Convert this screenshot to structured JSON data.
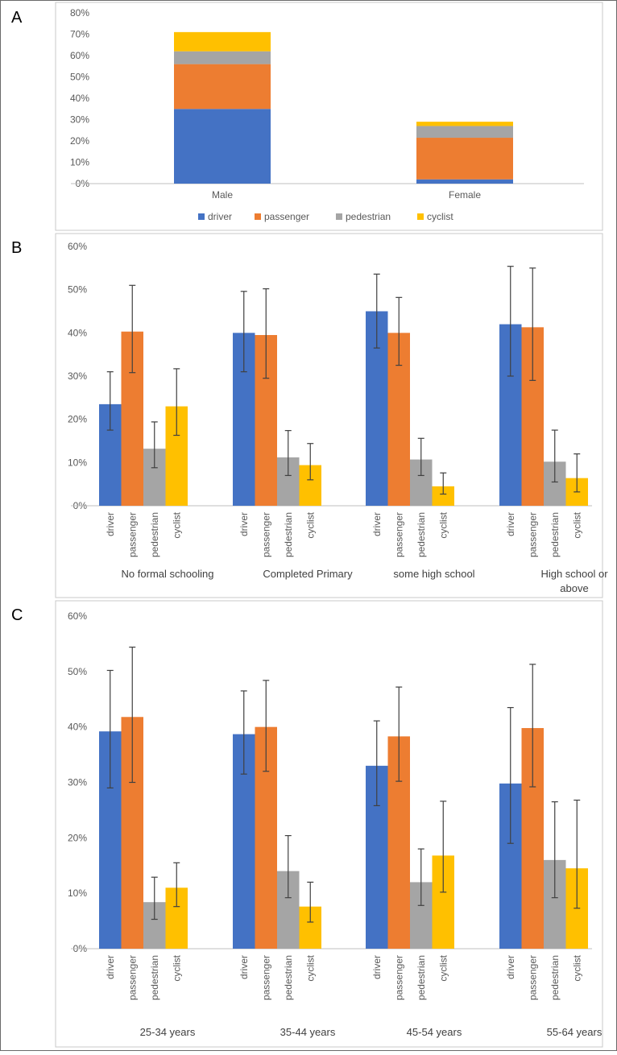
{
  "colors": {
    "driver": "#4472C4",
    "passenger": "#ED7D31",
    "pedestrian": "#A5A5A5",
    "cyclist": "#FFC000"
  },
  "chart_data": [
    {
      "panel": "A",
      "type": "bar",
      "stacked": true,
      "categories": [
        "Male",
        "Female"
      ],
      "series": [
        {
          "name": "driver",
          "values": [
            35,
            2
          ]
        },
        {
          "name": "passenger",
          "values": [
            21,
            19.5
          ]
        },
        {
          "name": "pedestrian",
          "values": [
            6,
            5.5
          ]
        },
        {
          "name": "cyclist",
          "values": [
            9,
            2
          ]
        }
      ],
      "yticks": [
        "0%",
        "10%",
        "20%",
        "30%",
        "40%",
        "50%",
        "60%",
        "70%",
        "80%"
      ],
      "ylim": [
        0,
        80
      ],
      "legend": [
        "driver",
        "passenger",
        "pedestrian",
        "cyclist"
      ],
      "legend_position": "bottom"
    },
    {
      "panel": "B",
      "type": "bar",
      "stacked": false,
      "groups": [
        "No formal schooling",
        "Completed Primary",
        "some high school",
        "High school or above"
      ],
      "bar_labels": [
        "driver",
        "passenger",
        "pedestrian",
        "cyclist"
      ],
      "values": [
        [
          23.5,
          40.3,
          13.2,
          23
        ],
        [
          40,
          39.5,
          11.2,
          9.4
        ],
        [
          45,
          40,
          10.7,
          4.5
        ],
        [
          42,
          41.3,
          10.2,
          6.4
        ]
      ],
      "err_low": [
        [
          17.5,
          30.8,
          8.8,
          16.3
        ],
        [
          31,
          29.5,
          7,
          6
        ],
        [
          36.5,
          32.5,
          7,
          2.7
        ],
        [
          30,
          29,
          5.5,
          3.2
        ]
      ],
      "err_high": [
        [
          31,
          51,
          19.4,
          31.7
        ],
        [
          49.6,
          50.2,
          17.4,
          14.4
        ],
        [
          53.6,
          48.2,
          15.6,
          7.6
        ],
        [
          55.4,
          55,
          17.5,
          12
        ]
      ],
      "yticks": [
        "0%",
        "10%",
        "20%",
        "30%",
        "40%",
        "50%",
        "60%"
      ],
      "ylim": [
        0,
        60
      ]
    },
    {
      "panel": "C",
      "type": "bar",
      "stacked": false,
      "groups": [
        "25-34 years",
        "35-44 years",
        "45-54 years",
        "55-64 years"
      ],
      "bar_labels": [
        "driver",
        "passenger",
        "pedestrian",
        "cyclist"
      ],
      "values": [
        [
          39.2,
          41.8,
          8.4,
          11
        ],
        [
          38.7,
          40,
          14,
          7.6
        ],
        [
          33,
          38.3,
          12,
          16.8
        ],
        [
          29.8,
          39.8,
          16,
          14.5
        ]
      ],
      "err_low": [
        [
          29,
          30,
          5.3,
          7.6
        ],
        [
          31.5,
          32,
          9.2,
          4.8
        ],
        [
          25.8,
          30.2,
          7.8,
          10.2
        ],
        [
          19,
          29.2,
          9.2,
          7.3
        ]
      ],
      "err_high": [
        [
          50.2,
          54.4,
          12.9,
          15.5
        ],
        [
          46.5,
          48.4,
          20.4,
          12
        ],
        [
          41.1,
          47.2,
          18,
          26.6
        ],
        [
          43.5,
          51.3,
          26.5,
          26.8
        ]
      ],
      "yticks": [
        "0%",
        "10%",
        "20%",
        "30%",
        "40%",
        "50%",
        "60%"
      ],
      "ylim": [
        0,
        60
      ]
    }
  ]
}
